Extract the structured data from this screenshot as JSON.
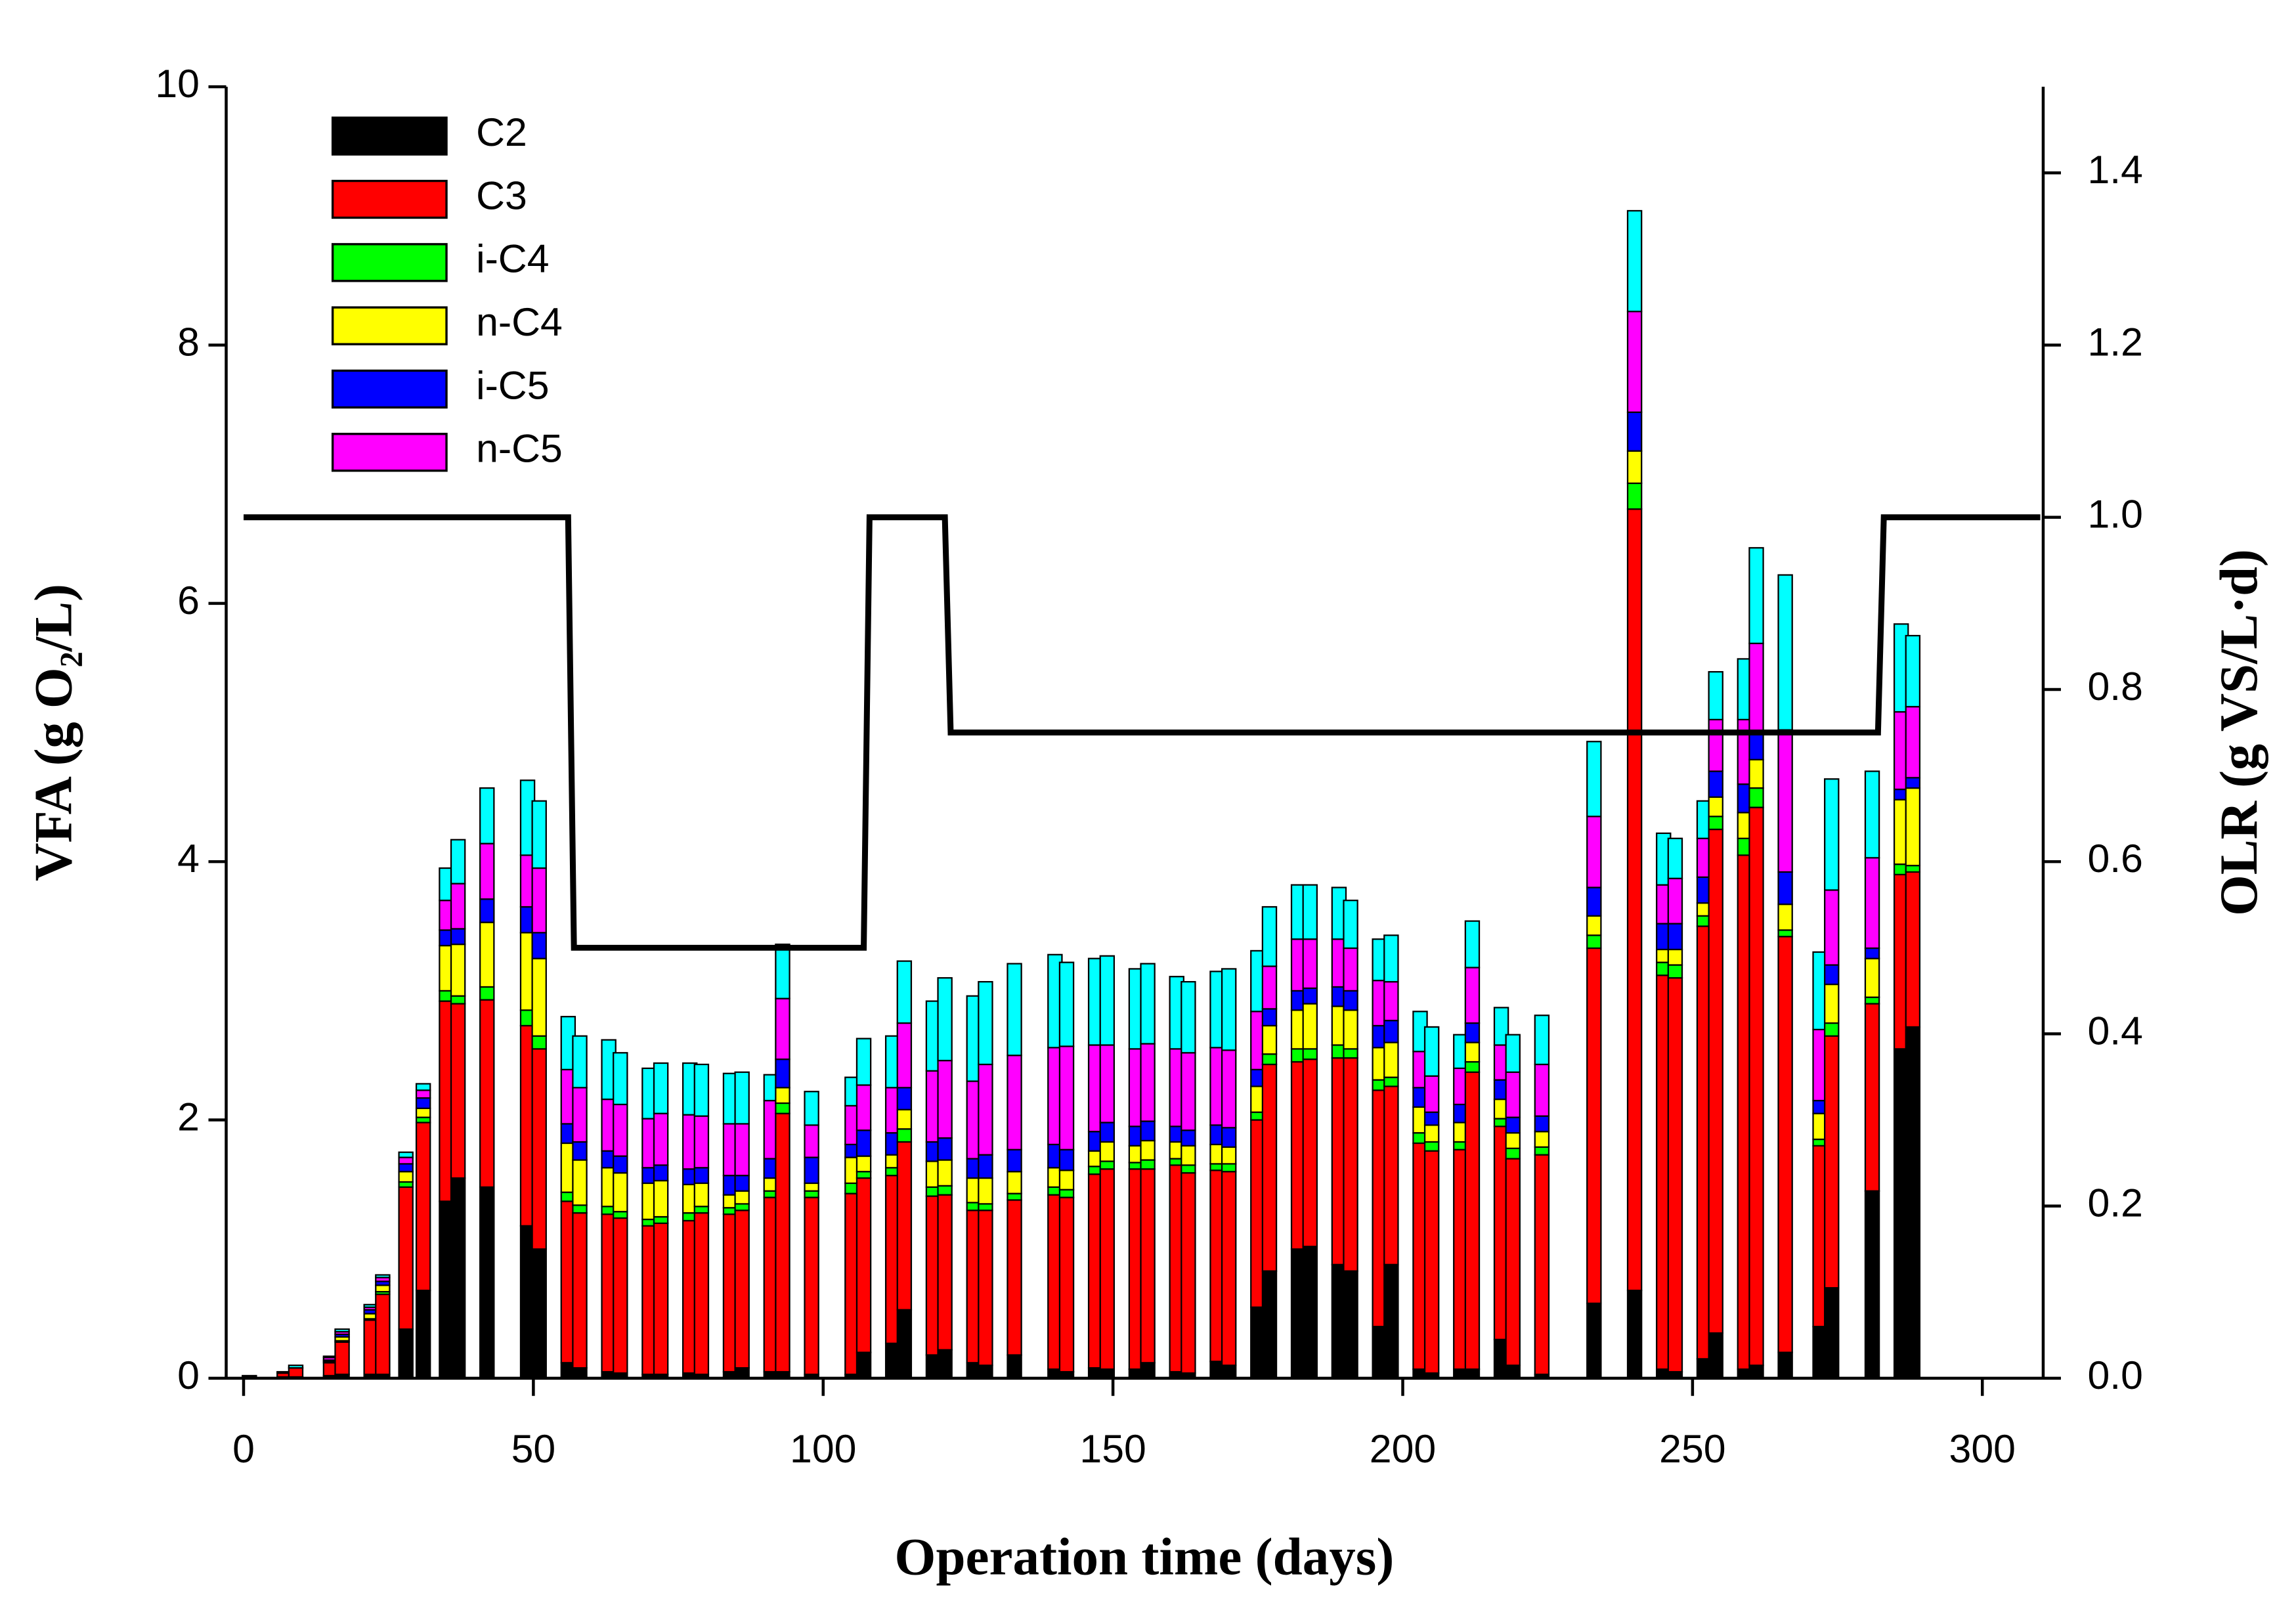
{
  "chart_data": {
    "type": "bar",
    "stacked": true,
    "x_label": "Operation time (days)",
    "y_label": "VFA (g O₂/L)",
    "y2_label": "OLR (g VS/L·d)",
    "xlim": [
      -3,
      310.5
    ],
    "xticks": [
      0,
      50,
      100,
      150,
      200,
      250,
      300
    ],
    "ylim": [
      0,
      10
    ],
    "yticks": [
      0,
      2,
      4,
      6,
      8,
      10
    ],
    "y2lim": [
      0,
      1.5
    ],
    "y2ticks": [
      {
        "value": 0,
        "label": "0.0"
      },
      0.2,
      0.4,
      0.6,
      0.8,
      {
        "value": 1,
        "label": "1.0"
      },
      1.2,
      1.4
    ],
    "legend": "upper left",
    "x": [
      1,
      7,
      9,
      15,
      17,
      22,
      24,
      28,
      31,
      35,
      37,
      42,
      49,
      51,
      56,
      58,
      63,
      65,
      70,
      72,
      77,
      79,
      84,
      86,
      91,
      93,
      98,
      105,
      107,
      112,
      114,
      119,
      121,
      126,
      128,
      133,
      140,
      142,
      147,
      149,
      154,
      156,
      161,
      163,
      168,
      170,
      175,
      177,
      182,
      184,
      189,
      191,
      196,
      198,
      203,
      205,
      210,
      212,
      217,
      219,
      224,
      233,
      240,
      245,
      247,
      252,
      254,
      259,
      261,
      266,
      272,
      274,
      281,
      286,
      288
    ],
    "series": [
      {
        "name": "C2",
        "color": "#000000",
        "values": [
          0.01,
          0.01,
          0.01,
          0.02,
          0.03,
          0.03,
          0.03,
          0.38,
          0.68,
          1.37,
          1.55,
          1.48,
          1.18,
          1.0,
          0.12,
          0.08,
          0.05,
          0.04,
          0.03,
          0.03,
          0.04,
          0.03,
          0.05,
          0.08,
          0.05,
          0.05,
          0.03,
          0.03,
          0.2,
          0.27,
          0.53,
          0.18,
          0.22,
          0.12,
          0.1,
          0.18,
          0.07,
          0.05,
          0.08,
          0.07,
          0.07,
          0.12,
          0.05,
          0.04,
          0.13,
          0.1,
          0.55,
          0.83,
          1.0,
          1.02,
          0.88,
          0.83,
          0.4,
          0.88,
          0.07,
          0.04,
          0.07,
          0.07,
          0.3,
          0.1,
          0.03,
          0.58,
          0.68,
          0.07,
          0.05,
          0.15,
          0.35,
          0.07,
          0.1,
          0.2,
          0.4,
          0.7,
          1.45,
          2.55,
          2.72
        ]
      },
      {
        "name": "C3",
        "color": "#ff0000",
        "values": [
          0.01,
          0.03,
          0.07,
          0.1,
          0.25,
          0.42,
          0.62,
          1.1,
          1.3,
          1.55,
          1.35,
          1.45,
          1.55,
          1.55,
          1.25,
          1.2,
          1.22,
          1.2,
          1.15,
          1.17,
          1.18,
          1.25,
          1.22,
          1.22,
          1.35,
          2.0,
          1.37,
          1.4,
          1.35,
          1.3,
          1.3,
          1.23,
          1.2,
          1.18,
          1.2,
          1.2,
          1.35,
          1.35,
          1.5,
          1.55,
          1.55,
          1.5,
          1.6,
          1.55,
          1.48,
          1.5,
          1.45,
          1.6,
          1.45,
          1.45,
          1.6,
          1.65,
          1.83,
          1.38,
          1.75,
          1.72,
          1.7,
          2.3,
          1.65,
          1.6,
          1.7,
          2.75,
          6.05,
          3.05,
          3.05,
          3.35,
          3.9,
          3.98,
          4.32,
          3.22,
          1.4,
          1.95,
          1.45,
          1.35,
          1.2
        ]
      },
      {
        "name": "i-C4",
        "color": "#00ff00",
        "values": [
          0,
          0,
          0,
          0,
          0.01,
          0.01,
          0.02,
          0.04,
          0.04,
          0.08,
          0.06,
          0.1,
          0.12,
          0.1,
          0.07,
          0.06,
          0.06,
          0.05,
          0.05,
          0.05,
          0.06,
          0.05,
          0.05,
          0.05,
          0.05,
          0.08,
          0.05,
          0.08,
          0.05,
          0.06,
          0.1,
          0.07,
          0.07,
          0.06,
          0.05,
          0.05,
          0.06,
          0.06,
          0.06,
          0.06,
          0.05,
          0.07,
          0.05,
          0.06,
          0.05,
          0.06,
          0.06,
          0.08,
          0.1,
          0.08,
          0.1,
          0.07,
          0.08,
          0.07,
          0.08,
          0.07,
          0.06,
          0.08,
          0.06,
          0.08,
          0.06,
          0.1,
          0.2,
          0.1,
          0.1,
          0.08,
          0.1,
          0.13,
          0.15,
          0.05,
          0.05,
          0.1,
          0.05,
          0.08,
          0.05
        ]
      },
      {
        "name": "n-C4",
        "color": "#ffff00",
        "values": [
          0,
          0,
          0,
          0.01,
          0.03,
          0.04,
          0.05,
          0.08,
          0.07,
          0.35,
          0.4,
          0.5,
          0.6,
          0.6,
          0.38,
          0.35,
          0.3,
          0.3,
          0.28,
          0.28,
          0.22,
          0.18,
          0.1,
          0.1,
          0.1,
          0.12,
          0.06,
          0.2,
          0.12,
          0.1,
          0.15,
          0.2,
          0.2,
          0.19,
          0.2,
          0.17,
          0.15,
          0.15,
          0.12,
          0.15,
          0.13,
          0.15,
          0.13,
          0.15,
          0.15,
          0.13,
          0.2,
          0.22,
          0.3,
          0.35,
          0.3,
          0.3,
          0.25,
          0.27,
          0.2,
          0.13,
          0.15,
          0.15,
          0.15,
          0.12,
          0.12,
          0.15,
          0.25,
          0.1,
          0.12,
          0.1,
          0.15,
          0.2,
          0.22,
          0.2,
          0.2,
          0.3,
          0.3,
          0.5,
          0.6
        ]
      },
      {
        "name": "i-C5",
        "color": "#0000ff",
        "values": [
          0,
          0,
          0,
          0.01,
          0.02,
          0.03,
          0.03,
          0.06,
          0.08,
          0.12,
          0.12,
          0.18,
          0.2,
          0.2,
          0.15,
          0.14,
          0.13,
          0.13,
          0.12,
          0.12,
          0.12,
          0.12,
          0.15,
          0.12,
          0.15,
          0.22,
          0.2,
          0.1,
          0.2,
          0.17,
          0.17,
          0.15,
          0.17,
          0.15,
          0.18,
          0.17,
          0.18,
          0.16,
          0.15,
          0.15,
          0.15,
          0.15,
          0.12,
          0.12,
          0.15,
          0.15,
          0.13,
          0.13,
          0.15,
          0.12,
          0.15,
          0.15,
          0.17,
          0.17,
          0.15,
          0.1,
          0.14,
          0.15,
          0.15,
          0.12,
          0.12,
          0.22,
          0.3,
          0.2,
          0.2,
          0.2,
          0.2,
          0.22,
          0.2,
          0.25,
          0.1,
          0.15,
          0.08,
          0.08,
          0.08
        ]
      },
      {
        "name": "n-C5",
        "color": "#ff00ff",
        "values": [
          0,
          0,
          0,
          0.02,
          0.02,
          0.02,
          0.03,
          0.05,
          0.06,
          0.23,
          0.35,
          0.43,
          0.4,
          0.5,
          0.42,
          0.42,
          0.4,
          0.4,
          0.38,
          0.4,
          0.42,
          0.4,
          0.4,
          0.4,
          0.45,
          0.47,
          0.25,
          0.3,
          0.35,
          0.35,
          0.5,
          0.55,
          0.6,
          0.6,
          0.7,
          0.73,
          0.75,
          0.8,
          0.67,
          0.6,
          0.6,
          0.6,
          0.6,
          0.6,
          0.6,
          0.6,
          0.45,
          0.33,
          0.4,
          0.38,
          0.37,
          0.33,
          0.35,
          0.3,
          0.28,
          0.28,
          0.28,
          0.43,
          0.27,
          0.35,
          0.4,
          0.55,
          0.78,
          0.3,
          0.35,
          0.3,
          0.4,
          0.5,
          0.7,
          1.1,
          0.55,
          0.58,
          0.7,
          0.6,
          0.55
        ]
      },
      {
        "color": "#00ffff",
        "values": [
          0,
          0.01,
          0.02,
          0.01,
          0.02,
          0.02,
          0.02,
          0.04,
          0.05,
          0.25,
          0.34,
          0.43,
          0.58,
          0.52,
          0.41,
          0.4,
          0.46,
          0.4,
          0.39,
          0.39,
          0.4,
          0.4,
          0.39,
          0.4,
          0.2,
          0.42,
          0.26,
          0.22,
          0.36,
          0.4,
          0.48,
          0.54,
          0.64,
          0.66,
          0.64,
          0.71,
          0.72,
          0.65,
          0.67,
          0.69,
          0.62,
          0.62,
          0.56,
          0.55,
          0.59,
          0.63,
          0.47,
          0.46,
          0.42,
          0.42,
          0.4,
          0.37,
          0.32,
          0.36,
          0.31,
          0.38,
          0.26,
          0.36,
          0.29,
          0.29,
          0.38,
          0.58,
          0.78,
          0.4,
          0.31,
          0.29,
          0.37,
          0.47,
          0.74,
          1.2,
          0.6,
          0.86,
          0.67,
          0.68,
          0.55
        ]
      },
      {
        "type": "line",
        "axis": "y2",
        "color": "#000000",
        "x": [
          0,
          56,
          57,
          107,
          108,
          121,
          122,
          282,
          283,
          310
        ],
        "values": [
          1,
          1,
          0.5,
          0.5,
          1,
          1,
          0.75,
          0.75,
          1,
          1
        ]
      }
    ]
  }
}
